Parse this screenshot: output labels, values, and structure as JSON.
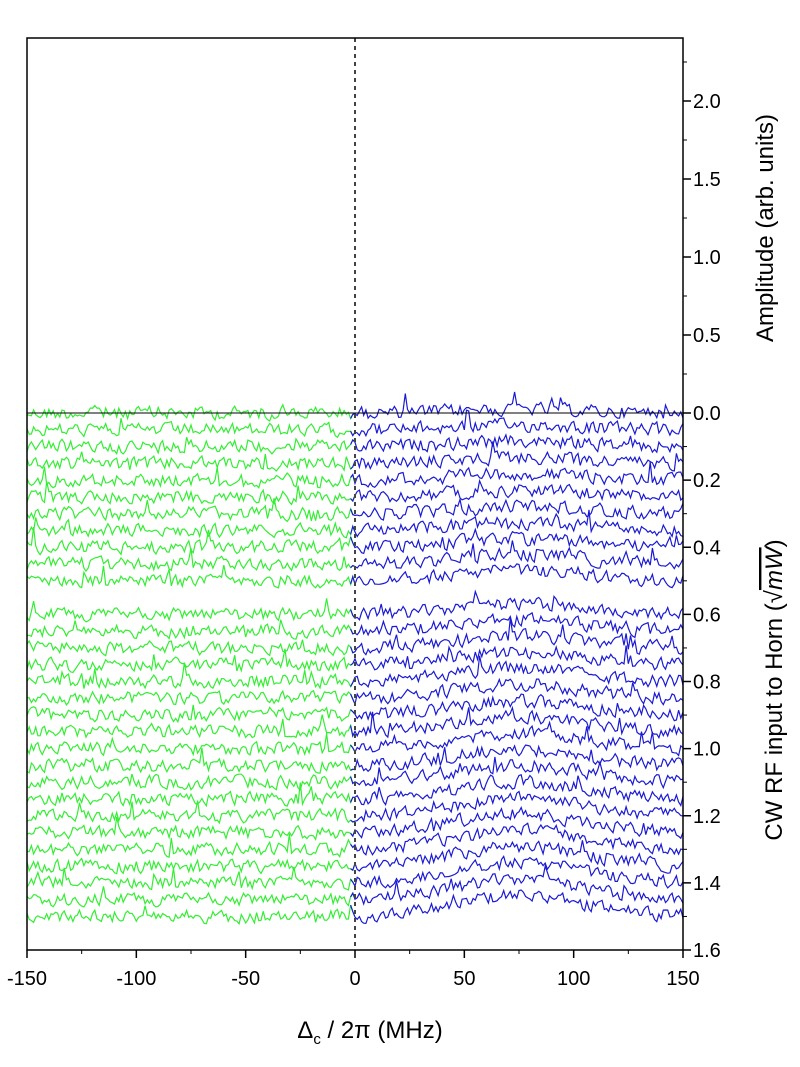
{
  "chart_data": {
    "type": "line",
    "xlabel": "Δ",
    "xlabel_sub": "c",
    "xlabel_rest": " / 2π (MHz)",
    "xlim": [
      -150,
      150
    ],
    "xticks": [
      -150,
      -100,
      -50,
      0,
      50,
      100,
      150
    ],
    "x_tick_labels": [
      "-150",
      "-100",
      "-50",
      "0",
      "50",
      "100",
      "150"
    ],
    "ylabel_upper": "Amplitude (arb. units)",
    "ylim_upper": [
      0.0,
      2.4
    ],
    "yticks_upper": [
      0.0,
      0.5,
      1.0,
      1.5,
      2.0
    ],
    "y_tick_labels_upper": [
      "0.0",
      "0.5",
      "1.0",
      "1.5",
      "2.0"
    ],
    "ylabel_lower_prefix": "CW RF input to Horn (",
    "ylabel_lower_sqrt": "√",
    "ylabel_lower_unit": "mW",
    "ylabel_lower_suffix": ")",
    "ylim_lower": [
      0.0,
      1.6
    ],
    "yticks_lower": [
      0.2,
      0.4,
      0.6,
      0.8,
      1.0,
      1.2,
      1.4,
      1.6
    ],
    "y_tick_labels_lower": [
      "0.2",
      "0.4",
      "0.6",
      "0.8",
      "1.0",
      "1.2",
      "1.4",
      "1.6"
    ],
    "reference_line_x": 0,
    "grid": false,
    "series_colors": {
      "left": "#33ee33",
      "right": "#1a1ad6"
    },
    "trace_offsets": [
      0.0,
      0.05,
      0.1,
      0.15,
      0.2,
      0.25,
      0.3,
      0.35,
      0.4,
      0.45,
      0.5,
      0.6,
      0.65,
      0.7,
      0.75,
      0.8,
      0.85,
      0.9,
      0.95,
      1.0,
      1.05,
      1.1,
      1.15,
      1.2,
      1.25,
      1.3,
      1.35,
      1.4,
      1.45,
      1.5
    ],
    "peak_center_mhz": 75,
    "noise_amplitude": 0.018
  }
}
